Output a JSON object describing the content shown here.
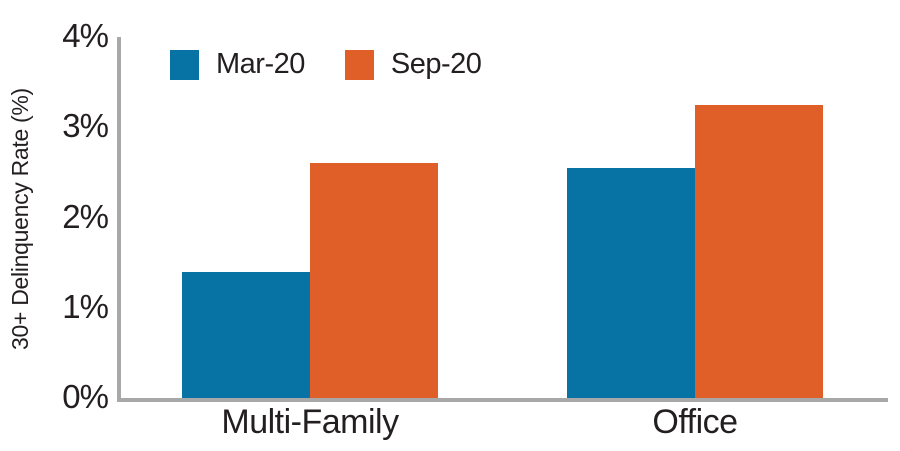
{
  "colors": {
    "axis": "#a8a8a8",
    "text": "#231f20",
    "background": "#ffffff"
  },
  "chart_data": {
    "type": "bar",
    "title": "",
    "xlabel": "",
    "ylabel": "30+ Delinquency Rate (%)",
    "categories": [
      "Multi-Family",
      "Office"
    ],
    "series": [
      {
        "name": "Mar-20",
        "color": "#0773a4",
        "values": [
          1.4,
          2.55
        ]
      },
      {
        "name": "Sep-20",
        "color": "#e05e27",
        "values": [
          2.6,
          3.25
        ]
      }
    ],
    "ylim": [
      0,
      4
    ],
    "yticks": [
      "0%",
      "1%",
      "2%",
      "3%",
      "4%"
    ],
    "grid": false,
    "legend_position": "top-left"
  }
}
